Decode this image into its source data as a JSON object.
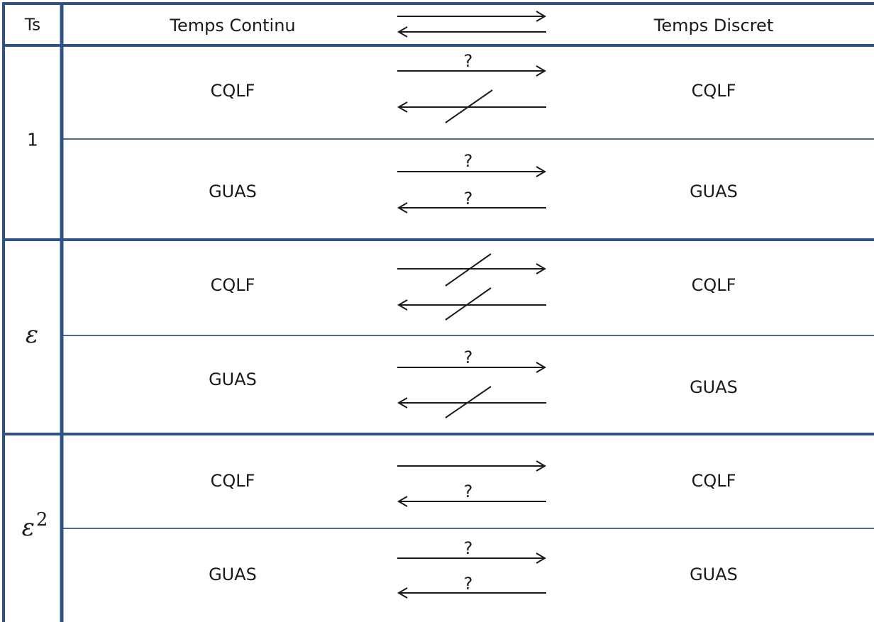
{
  "header": {
    "ts_label": "Ts",
    "continuous_label": "Temps Continu",
    "discrete_label": "Temps Discret"
  },
  "line_color": "#2f5387",
  "groups": [
    {
      "ts": "1",
      "rows": [
        {
          "left": "CQLF",
          "right": "CQLF",
          "forward": "?",
          "backward": "negated"
        },
        {
          "left": "GUAS",
          "right": "GUAS",
          "forward": "?",
          "backward": "?"
        }
      ]
    },
    {
      "ts": "ε",
      "rows": [
        {
          "left": "CQLF",
          "right": "CQLF",
          "forward": "negated",
          "backward": "negated"
        },
        {
          "left": "GUAS",
          "right": "GUAS",
          "forward": "?",
          "backward": "negated"
        }
      ]
    },
    {
      "ts": "ε",
      "ts_exp": "2",
      "rows": [
        {
          "left": "CQLF",
          "right": "CQLF",
          "forward": "implies",
          "backward": "?"
        },
        {
          "left": "GUAS",
          "right": "GUAS",
          "forward": "?",
          "backward": "?"
        }
      ]
    }
  ]
}
